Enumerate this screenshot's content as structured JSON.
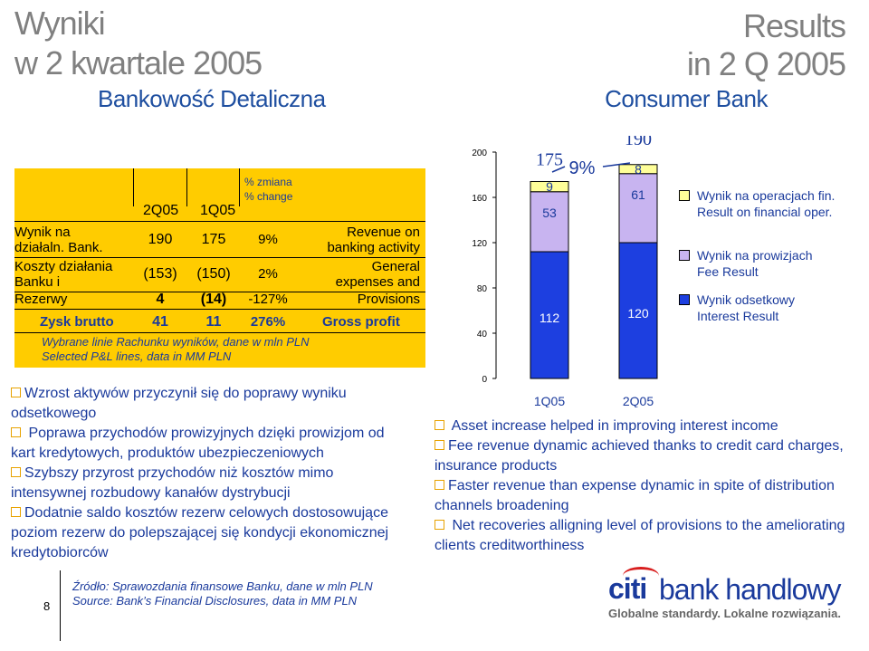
{
  "header": {
    "title_pl_line1": "Wyniki",
    "title_pl_line2": "w 2 kwartale 2005",
    "title_en_line1": "Results",
    "title_en_line2": "in 2 Q 2005",
    "subtitle_pl": "Bankowość Detaliczna",
    "subtitle_en": "Consumer Bank"
  },
  "table": {
    "col_headers": {
      "q2": "2Q05",
      "q1": "1Q05",
      "change_pl": "% zmiana",
      "change_en": "% change"
    },
    "rows": [
      {
        "label_pl_1": "Wynik na",
        "label_pl_2": "działaln. Bank.",
        "q2": "190",
        "q1": "175",
        "pct": "9%",
        "label_en_1": "Revenue on",
        "label_en_2": "banking activity"
      },
      {
        "label_pl_1": "Koszty działania",
        "label_pl_2": "Banku i",
        "q2": "(153)",
        "q1": "(150)",
        "pct": "2%",
        "label_en_1": "General",
        "label_en_2": "expenses and"
      },
      {
        "label_pl_1": "Rezerwy",
        "q2": "4",
        "q1": "(14)",
        "pct": "-127%",
        "label_en_1": "Provisions"
      },
      {
        "label_pl_1": "Zysk brutto",
        "q2": "41",
        "q1": "11",
        "pct": "276%",
        "label_en_1": "Gross profit"
      }
    ],
    "footnote_pl": "Wybrane linie Rachunku wyników, dane w mln PLN",
    "footnote_en": "Selected P&L lines, data in MM PLN"
  },
  "chart_data": {
    "type": "bar",
    "stacked": true,
    "categories": [
      "1Q05",
      "2Q05"
    ],
    "series": [
      {
        "name": "Wynik odsetkowy / Interest Result",
        "values": [
          112,
          120
        ],
        "color": "#1d3fe0"
      },
      {
        "name": "Wynik na prowizjach / Fee Result",
        "values": [
          53,
          61
        ],
        "color": "#c8b4f0"
      },
      {
        "name": "Wynik na operacjach fin. / Result on financial oper.",
        "values": [
          9,
          8
        ],
        "color": "#ffff99"
      }
    ],
    "totals": [
      175,
      190
    ],
    "annotation": "9%",
    "ylim": [
      0,
      200
    ],
    "yticks": [
      0,
      40,
      80,
      120,
      160,
      200
    ]
  },
  "legend": {
    "fin_pl": "Wynik na operacjach fin.",
    "fin_en": "Result on financial oper.",
    "fee_pl": "Wynik na prowizjach",
    "fee_en": "Fee Result",
    "int_pl": "Wynik odsetkowy",
    "int_en": "Interest Result"
  },
  "bullets_pl": [
    "Wzrost aktywów przyczynił się do poprawy wyniku odsetkowego",
    "Poprawa przychodów prowizyjnych dzięki prowizjom od kart kredytowych, produktów ubezpieczeniowych",
    "Szybszy przyrost przychodów niż kosztów mimo intensywnej rozbudowy kanałów dystrybucji",
    "Dodatnie saldo kosztów rezerw celowych dostosowujące poziom rezerw do polepszającej się kondycji ekonomicznej kredytobiorców"
  ],
  "bullets_en": [
    "Asset increase helped in improving interest income",
    "Fee revenue dynamic achieved thanks to credit card charges, insurance products",
    "Faster revenue than expense dynamic in spite of distribution channels broadening",
    "Net recoveries alligning level of provisions to the ameliorating clients creditworthiness"
  ],
  "footer": {
    "page_number": "8",
    "source_pl": "Źródło: Sprawozdania finansowe Banku, dane w mln PLN",
    "source_en": "Source: Bank’s Financial Disclosures, data in MM PLN",
    "logo_citi": "citi",
    "logo_handlowy": "bank handlowy",
    "logo_slogan": "Globalne standardy. Lokalne rozwiązania."
  },
  "colors": {
    "title_gray": "#808080",
    "subtitle_blue": "#1f4fa0",
    "table_yellow": "#ffcc00",
    "text_blue": "#1a3a9c",
    "bullet_box": "#e8a200"
  }
}
